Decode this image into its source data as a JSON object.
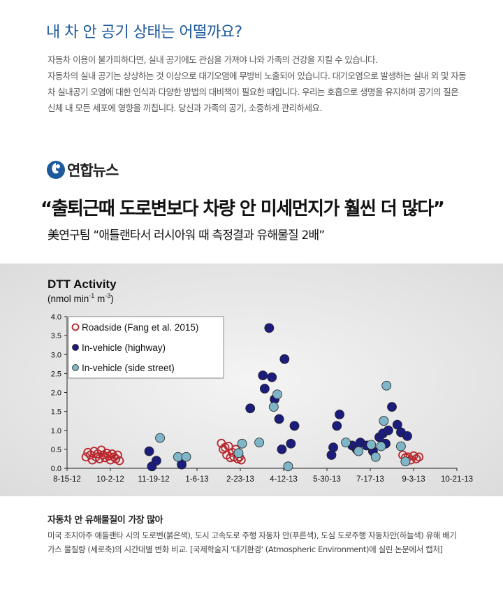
{
  "article": {
    "title": "내 차 안 공기 상태는 어떨까요?",
    "intro": [
      "자동차 이용이 불가피하다면, 실내 공기에도 관심을 가져야 나와 가족의 건강을 지킬 수 있습니다.",
      "자동차의 실내 공기는 상상하는 것 이상으로 대기오염에 무방비 노출되어 있습니다. 대기오염으로 발생하는 실내 외 및 자동차 실내공기 오염에 대한 인식과 다양한 방법의 대비책이 필요한 때입니다. 우리는 호흡으로 생명을 유지하며 공기의 질은 신체 내 모든 세포에 영향을 끼칩니다. 당신과 가족의 공기, 소중하게 관리하세요."
    ],
    "brand": "연합뉴스",
    "headline": "“출퇴근때 도로변보다 차량 안 미세먼지가 훨씬 더 많다”",
    "subline": "美연구팀 “애틀랜타서 러시아워 때 측정결과 유해물질 2배”",
    "caption_title": "자동차 안 유해물질이 가장 많아",
    "caption": "미국 조지아주 애틀랜타 시의 도로변(붉은색), 도시 고속도로 주행 자동차 안(푸른색), 도심 도로주행 자동차안(하늘색) 유해 배기가스 물질량 (세로축)의 시간대별 변화 비교. [국제학술지 '대기환경' (Atmospheric Environment)에 실린 논문에서 캡처]"
  },
  "colors": {
    "title_blue": "#1d5a9c",
    "roadside": "#b8272d",
    "highway": "#1c1c7c",
    "side_street": "#7fb6c7",
    "chart_bg": "#e8e8e8"
  },
  "chart_data": {
    "type": "scatter",
    "title": "DTT Activity",
    "ylabel": "(nmol min-1 m-3)",
    "ylabel_base": "(nmol min",
    "ylabel_exp1": "-1",
    "ylabel_mid": " m",
    "ylabel_exp2": "-3",
    "ylabel_end": ")",
    "x_ticks": [
      "8-15-12",
      "10-2-12",
      "11-19-12",
      "1-6-13",
      "2-23-13",
      "4-12-13",
      "5-30-13",
      "7-17-13",
      "9-3-13",
      "10-21-13"
    ],
    "y_ticks": [
      "0.0",
      "0.5",
      "1.0",
      "1.5",
      "2.0",
      "2.5",
      "3.0",
      "3.5",
      "4.0"
    ],
    "xlim": [
      "8-15-12",
      "10-21-13"
    ],
    "ylim": [
      0,
      4
    ],
    "grid": false,
    "legend_position": "top-left",
    "series": [
      {
        "name": "Roadside (Fang et al. 2015)",
        "style": "open-circle",
        "points": [
          [
            "9-5-12",
            0.3
          ],
          [
            "9-7-12",
            0.42
          ],
          [
            "9-10-12",
            0.35
          ],
          [
            "9-12-12",
            0.22
          ],
          [
            "9-14-12",
            0.45
          ],
          [
            "9-16-12",
            0.3
          ],
          [
            "9-18-12",
            0.38
          ],
          [
            "9-20-12",
            0.25
          ],
          [
            "9-22-12",
            0.48
          ],
          [
            "9-24-12",
            0.35
          ],
          [
            "9-26-12",
            0.28
          ],
          [
            "9-28-12",
            0.4
          ],
          [
            "9-30-12",
            0.32
          ],
          [
            "10-2-12",
            0.22
          ],
          [
            "10-4-12",
            0.38
          ],
          [
            "10-6-12",
            0.3
          ],
          [
            "10-8-12",
            0.25
          ],
          [
            "10-10-12",
            0.35
          ],
          [
            "10-12-12",
            0.2
          ],
          [
            "2-2-13",
            0.66
          ],
          [
            "2-4-13",
            0.5
          ],
          [
            "2-6-13",
            0.55
          ],
          [
            "2-8-13",
            0.35
          ],
          [
            "2-10-13",
            0.58
          ],
          [
            "2-12-13",
            0.28
          ],
          [
            "2-14-13",
            0.42
          ],
          [
            "2-16-13",
            0.3
          ],
          [
            "2-18-13",
            0.5
          ],
          [
            "2-20-13",
            0.25
          ],
          [
            "2-22-13",
            0.3
          ],
          [
            "2-24-13",
            0.22
          ],
          [
            "8-22-13",
            0.35
          ],
          [
            "8-25-13",
            0.28
          ],
          [
            "8-28-13",
            0.3
          ],
          [
            "8-31-13",
            0.22
          ],
          [
            "9-3-13",
            0.33
          ],
          [
            "9-6-13",
            0.25
          ],
          [
            "9-9-13",
            0.3
          ]
        ]
      },
      {
        "name": "In-vehicle (highway)",
        "style": "filled-circle",
        "points": [
          [
            "11-14-12",
            0.45
          ],
          [
            "11-17-12",
            0.05
          ],
          [
            "11-22-12",
            0.2
          ],
          [
            "12-20-12",
            0.1
          ],
          [
            "3-6-13",
            1.58
          ],
          [
            "3-20-13",
            2.45
          ],
          [
            "3-22-13",
            2.1
          ],
          [
            "3-27-13",
            3.7
          ],
          [
            "3-30-13",
            2.4
          ],
          [
            "4-2-13",
            1.82
          ],
          [
            "4-7-13",
            1.3
          ],
          [
            "4-10-13",
            0.5
          ],
          [
            "4-13-13",
            2.88
          ],
          [
            "4-20-13",
            0.65
          ],
          [
            "4-24-13",
            1.12
          ],
          [
            "6-4-13",
            0.35
          ],
          [
            "6-6-13",
            0.55
          ],
          [
            "6-10-13",
            1.12
          ],
          [
            "6-13-13",
            1.42
          ],
          [
            "6-27-13",
            0.6
          ],
          [
            "7-2-13",
            0.5
          ],
          [
            "7-6-13",
            0.68
          ],
          [
            "7-13-13",
            0.6
          ],
          [
            "7-20-13",
            0.45
          ],
          [
            "7-27-13",
            0.82
          ],
          [
            "7-31-13",
            0.92
          ],
          [
            "8-3-13",
            0.65
          ],
          [
            "8-6-13",
            1.0
          ],
          [
            "8-10-13",
            1.62
          ],
          [
            "8-16-13",
            1.15
          ],
          [
            "8-20-13",
            0.95
          ],
          [
            "8-27-13",
            0.85
          ]
        ]
      },
      {
        "name": "In-vehicle (side street)",
        "style": "filled-circle",
        "points": [
          [
            "11-26-12",
            0.8
          ],
          [
            "12-16-12",
            0.3
          ],
          [
            "12-25-12",
            0.3
          ],
          [
            "2-21-13",
            0.4
          ],
          [
            "2-25-13",
            0.65
          ],
          [
            "3-16-13",
            0.68
          ],
          [
            "4-1-13",
            1.62
          ],
          [
            "4-5-13",
            1.95
          ],
          [
            "4-17-13",
            0.05
          ],
          [
            "6-20-13",
            0.68
          ],
          [
            "7-4-13",
            0.45
          ],
          [
            "7-18-13",
            0.62
          ],
          [
            "7-23-13",
            0.3
          ],
          [
            "7-29-13",
            0.58
          ],
          [
            "8-1-13",
            1.25
          ],
          [
            "8-4-13",
            2.18
          ],
          [
            "8-20-13",
            0.58
          ],
          [
            "8-25-13",
            0.18
          ]
        ]
      }
    ]
  }
}
